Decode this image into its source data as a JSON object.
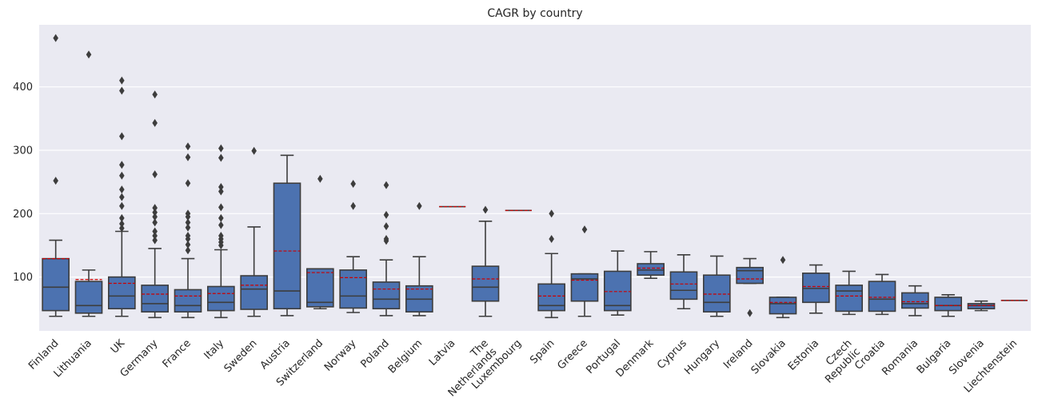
{
  "chart_data": {
    "type": "box",
    "title": "CAGR by country",
    "xlabel": "",
    "ylabel": "",
    "ylim": [
      15,
      498
    ],
    "yticks": [
      100,
      200,
      300,
      400
    ],
    "grid": true,
    "colors": {
      "box": "#4c72b0",
      "line": "#3d3d3d",
      "mean": "#cc0000",
      "background": "#eaeaf2"
    },
    "categories": [
      {
        "label": "Finland",
        "whisker_low": 38,
        "q1": 47,
        "median": 84,
        "q3": 129,
        "whisker_high": 158,
        "mean": 129,
        "outliers": [
          252,
          477
        ]
      },
      {
        "label": "Lithuania",
        "whisker_low": 38,
        "q1": 43,
        "median": 55,
        "q3": 93,
        "whisker_high": 111,
        "mean": 96,
        "outliers": [
          451
        ]
      },
      {
        "label": "UK",
        "whisker_low": 38,
        "q1": 50,
        "median": 70,
        "q3": 100,
        "whisker_high": 172,
        "mean": 90,
        "outliers": [
          177,
          184,
          193,
          212,
          226,
          238,
          260,
          277,
          322,
          394,
          410
        ]
      },
      {
        "label": "Germany",
        "whisker_low": 36,
        "q1": 45,
        "median": 58,
        "q3": 87,
        "whisker_high": 145,
        "mean": 73,
        "outliers": [
          158,
          165,
          172,
          186,
          195,
          202,
          209,
          262,
          343,
          388
        ]
      },
      {
        "label": "France",
        "whisker_low": 36,
        "q1": 45,
        "median": 55,
        "q3": 80,
        "whisker_high": 129,
        "mean": 70,
        "outliers": [
          142,
          151,
          160,
          165,
          178,
          186,
          195,
          200,
          248,
          289,
          306
        ]
      },
      {
        "label": "Italy",
        "whisker_low": 36,
        "q1": 47,
        "median": 60,
        "q3": 85,
        "whisker_high": 143,
        "mean": 74,
        "outliers": [
          150,
          155,
          160,
          165,
          182,
          193,
          210,
          235,
          242,
          288,
          303
        ]
      },
      {
        "label": "Sweden",
        "whisker_low": 38,
        "q1": 49,
        "median": 81,
        "q3": 102,
        "whisker_high": 179,
        "mean": 87,
        "outliers": [
          299
        ]
      },
      {
        "label": "Austria",
        "whisker_low": 39,
        "q1": 50,
        "median": 78,
        "q3": 248,
        "whisker_high": 292,
        "mean": 141,
        "outliers": []
      },
      {
        "label": "Switzerland",
        "whisker_low": 50,
        "q1": 53,
        "median": 60,
        "q3": 113,
        "whisker_high": 113,
        "mean": 107,
        "outliers": [
          255
        ]
      },
      {
        "label": "Norway",
        "whisker_low": 44,
        "q1": 51,
        "median": 70,
        "q3": 111,
        "whisker_high": 132,
        "mean": 99,
        "outliers": [
          212,
          247
        ]
      },
      {
        "label": "Poland",
        "whisker_low": 39,
        "q1": 50,
        "median": 65,
        "q3": 92,
        "whisker_high": 127,
        "mean": 81,
        "outliers": [
          157,
          160,
          180,
          198,
          245
        ]
      },
      {
        "label": "Belgium",
        "whisker_low": 39,
        "q1": 45,
        "median": 65,
        "q3": 86,
        "whisker_high": 132,
        "mean": 81,
        "outliers": [
          212
        ]
      },
      {
        "label": "Latvia",
        "whisker_low": 211,
        "q1": 211,
        "median": 211,
        "q3": 211,
        "whisker_high": 211,
        "mean": 211,
        "outliers": []
      },
      {
        "label": "The Netherlands",
        "whisker_low": 38,
        "q1": 62,
        "median": 84,
        "q3": 117,
        "whisker_high": 188,
        "mean": 97,
        "outliers": [
          206
        ]
      },
      {
        "label": "Luxembourg",
        "whisker_low": 205,
        "q1": 205,
        "median": 205,
        "q3": 205,
        "whisker_high": 205,
        "mean": 205,
        "outliers": []
      },
      {
        "label": "Spain",
        "whisker_low": 36,
        "q1": 47,
        "median": 55,
        "q3": 89,
        "whisker_high": 137,
        "mean": 70,
        "outliers": [
          160,
          200
        ]
      },
      {
        "label": "Greece",
        "whisker_low": 38,
        "q1": 62,
        "median": 97,
        "q3": 105,
        "whisker_high": 105,
        "mean": 95,
        "outliers": [
          175
        ]
      },
      {
        "label": "Portugal",
        "whisker_low": 40,
        "q1": 47,
        "median": 55,
        "q3": 109,
        "whisker_high": 141,
        "mean": 77,
        "outliers": []
      },
      {
        "label": "Denmark",
        "whisker_low": 98,
        "q1": 103,
        "median": 111,
        "q3": 121,
        "whisker_high": 140,
        "mean": 114,
        "outliers": []
      },
      {
        "label": "Cyprus",
        "whisker_low": 50,
        "q1": 65,
        "median": 79,
        "q3": 108,
        "whisker_high": 135,
        "mean": 89,
        "outliers": []
      },
      {
        "label": "Hungary",
        "whisker_low": 38,
        "q1": 45,
        "median": 60,
        "q3": 103,
        "whisker_high": 133,
        "mean": 73,
        "outliers": []
      },
      {
        "label": "Ireland",
        "whisker_low": 90,
        "q1": 90,
        "median": 110,
        "q3": 115,
        "whisker_high": 129,
        "mean": 97,
        "outliers": [
          43
        ]
      },
      {
        "label": "Slovakia",
        "whisker_low": 36,
        "q1": 42,
        "median": 58,
        "q3": 68,
        "whisker_high": 68,
        "mean": 60,
        "outliers": [
          127
        ]
      },
      {
        "label": "Estonia",
        "whisker_low": 43,
        "q1": 60,
        "median": 82,
        "q3": 106,
        "whisker_high": 119,
        "mean": 85,
        "outliers": []
      },
      {
        "label": "Czech Republic",
        "whisker_low": 41,
        "q1": 46,
        "median": 78,
        "q3": 87,
        "whisker_high": 109,
        "mean": 70,
        "outliers": []
      },
      {
        "label": "Croatia",
        "whisker_low": 41,
        "q1": 46,
        "median": 65,
        "q3": 93,
        "whisker_high": 104,
        "mean": 68,
        "outliers": []
      },
      {
        "label": "Romania",
        "whisker_low": 39,
        "q1": 51,
        "median": 58,
        "q3": 75,
        "whisker_high": 86,
        "mean": 61,
        "outliers": []
      },
      {
        "label": "Bulgaria",
        "whisker_low": 38,
        "q1": 47,
        "median": 55,
        "q3": 68,
        "whisker_high": 72,
        "mean": 55,
        "outliers": []
      },
      {
        "label": "Slovenia",
        "whisker_low": 47,
        "q1": 50,
        "median": 55,
        "q3": 58,
        "whisker_high": 62,
        "mean": 55,
        "outliers": []
      },
      {
        "label": "Liechtenstein",
        "whisker_low": 63,
        "q1": 63,
        "median": 63,
        "q3": 63,
        "whisker_high": 63,
        "mean": 63,
        "outliers": []
      }
    ]
  }
}
